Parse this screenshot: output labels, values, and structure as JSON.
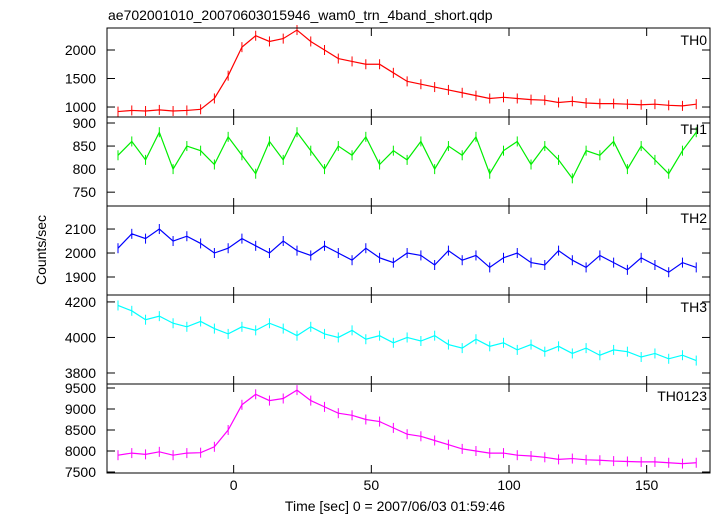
{
  "chart_data": {
    "type": "line",
    "title": "ae702001010_20070603015946_wam0_trn_4band_short.qdp",
    "x_label": "Time [sec] 0 = 2007/06/03 01:59:46",
    "y_label": "Counts/sec",
    "xlim": [
      -46,
      173
    ],
    "xticks": [
      0,
      50,
      100,
      150
    ],
    "x": [
      -42,
      -37,
      -32,
      -27,
      -22,
      -17,
      -12,
      -7,
      -2,
      3,
      8,
      13,
      18,
      23,
      28,
      33,
      38,
      43,
      48,
      53,
      58,
      63,
      68,
      73,
      78,
      83,
      88,
      93,
      98,
      103,
      108,
      113,
      118,
      123,
      128,
      133,
      138,
      143,
      148,
      153,
      158,
      163,
      168
    ],
    "series": [
      {
        "name": "TH0",
        "color": "#ff0000",
        "ylim": [
          825,
          2386
        ],
        "yticks": [
          1000,
          1500,
          2000
        ],
        "values": [
          920,
          940,
          930,
          950,
          930,
          940,
          960,
          1150,
          1550,
          2050,
          2250,
          2150,
          2200,
          2350,
          2150,
          2000,
          1850,
          1800,
          1750,
          1750,
          1600,
          1450,
          1400,
          1350,
          1300,
          1250,
          1200,
          1150,
          1170,
          1150,
          1130,
          1120,
          1080,
          1100,
          1070,
          1060,
          1060,
          1050,
          1040,
          1050,
          1030,
          1020,
          1050
        ]
      },
      {
        "name": "TH1",
        "color": "#00ee00",
        "ylim": [
          720,
          913
        ],
        "yticks": [
          750,
          800,
          850,
          900
        ],
        "values": [
          830,
          860,
          820,
          880,
          800,
          850,
          840,
          810,
          870,
          830,
          790,
          860,
          820,
          880,
          840,
          800,
          850,
          830,
          870,
          810,
          840,
          820,
          860,
          800,
          850,
          830,
          870,
          790,
          840,
          860,
          810,
          850,
          820,
          780,
          840,
          830,
          860,
          800,
          850,
          820,
          790,
          840,
          880
        ]
      },
      {
        "name": "TH2",
        "color": "#0000ff",
        "ylim": [
          1825,
          2196
        ],
        "yticks": [
          1900,
          2000,
          2100
        ],
        "values": [
          2020,
          2080,
          2060,
          2100,
          2050,
          2070,
          2040,
          2000,
          2020,
          2060,
          2030,
          2000,
          2050,
          2010,
          1990,
          2030,
          2000,
          1970,
          2020,
          1980,
          1960,
          2000,
          1990,
          1950,
          2010,
          1970,
          1990,
          1940,
          1980,
          2000,
          1960,
          1950,
          2010,
          1970,
          1940,
          1990,
          1960,
          1930,
          1980,
          1950,
          1920,
          1960,
          1940
        ]
      },
      {
        "name": "TH3",
        "color": "#00ffff",
        "ylim": [
          3738,
          4239
        ],
        "yticks": [
          3800,
          4000,
          4200
        ],
        "values": [
          4180,
          4150,
          4100,
          4120,
          4080,
          4060,
          4090,
          4050,
          4020,
          4060,
          4040,
          4080,
          4050,
          4010,
          4060,
          4020,
          4000,
          4040,
          3990,
          4010,
          3970,
          4000,
          3980,
          4010,
          3960,
          3940,
          3990,
          3950,
          3970,
          3930,
          3960,
          3920,
          3950,
          3910,
          3940,
          3900,
          3930,
          3920,
          3890,
          3910,
          3880,
          3900,
          3870
        ]
      },
      {
        "name": "TH0123",
        "color": "#ff00ff",
        "ylim": [
          7476,
          9595
        ],
        "yticks": [
          7500,
          8000,
          8500,
          9000,
          9500
        ],
        "values": [
          7900,
          7950,
          7920,
          7980,
          7900,
          7950,
          7960,
          8100,
          8500,
          9100,
          9350,
          9200,
          9250,
          9450,
          9200,
          9050,
          8900,
          8850,
          8750,
          8700,
          8550,
          8400,
          8350,
          8250,
          8150,
          8050,
          8000,
          7950,
          7950,
          7900,
          7880,
          7850,
          7800,
          7820,
          7790,
          7780,
          7760,
          7750,
          7740,
          7740,
          7720,
          7700,
          7720
        ]
      }
    ]
  }
}
